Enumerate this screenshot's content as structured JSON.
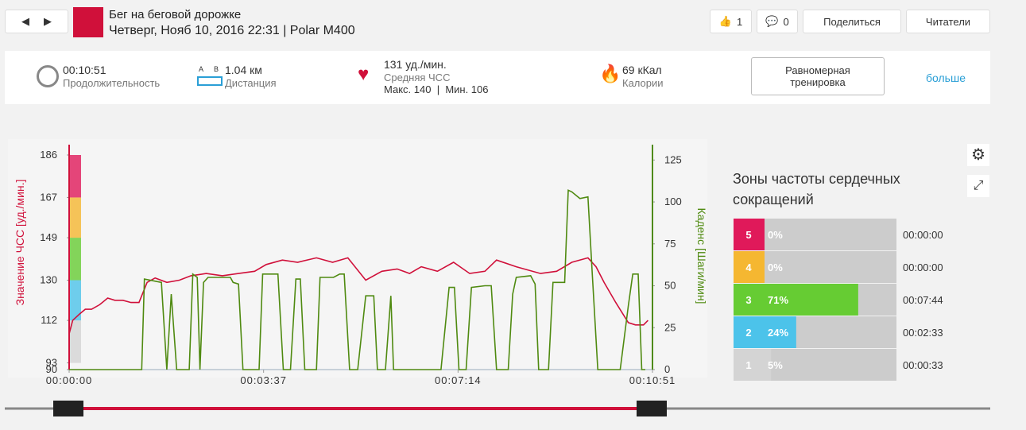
{
  "header": {
    "title": "Бег на беговой дорожке",
    "subtitle": "Четверг, Нояб 10, 2016 22:31 | Polar M400",
    "likes": "1",
    "comments": "0",
    "share": "Поделиться",
    "readers": "Читатели"
  },
  "summary": {
    "duration": "00:10:51",
    "duration_label": "Продолжительность",
    "dist_a": "A",
    "dist_b": "B",
    "distance": "1.04 км",
    "distance_label": "Дистанция",
    "hr": "131 уд./мин.",
    "hr_label": "Средняя ЧСС",
    "hr_max": "Макс. 140",
    "hr_sep": "|",
    "hr_min": "Мин. 106",
    "calories": "69 кКал",
    "calories_label": "Калории",
    "training": "Равномерная тренировка",
    "more": "больше"
  },
  "chart_data": {
    "type": "line",
    "y_label": "Значение ЧСС [уд./мин.]",
    "y2_label": "Каденс [Шаги/мин]",
    "xlim": [
      0,
      651
    ],
    "xticks": [
      {
        "value": 0,
        "label": "00:00:00"
      },
      {
        "value": 217,
        "label": "00:03:37"
      },
      {
        "value": 434,
        "label": "00:07:14"
      },
      {
        "value": 651,
        "label": "00:10:51"
      }
    ],
    "ylim": [
      90,
      186
    ],
    "yticks": [
      90,
      93,
      112,
      130,
      149,
      167,
      186
    ],
    "y2lim": [
      0,
      128
    ],
    "y2ticks": [
      0,
      25,
      50,
      75,
      100,
      125
    ],
    "series": [
      {
        "color": "#d0103a",
        "x": [
          0,
          4,
          12,
          18,
          25,
          34,
          43,
          51,
          60,
          69,
          78,
          87,
          96,
          109,
          123,
          136,
          153,
          171,
          189,
          207,
          220,
          238,
          255,
          276,
          294,
          311,
          331,
          349,
          366,
          380,
          393,
          411,
          429,
          447,
          464,
          477,
          499,
          526,
          544,
          561,
          579,
          588,
          597,
          610,
          624,
          632,
          641,
          646
        ],
        "values": [
          106,
          112,
          115,
          117,
          117,
          119,
          122,
          121,
          121,
          120,
          120,
          129,
          131,
          129,
          130,
          132,
          133,
          132,
          133,
          134,
          137,
          139,
          138,
          140,
          138,
          140,
          130,
          134,
          135,
          133,
          136,
          134,
          138,
          133,
          134,
          139,
          136,
          133,
          134,
          138,
          140,
          136,
          129,
          120,
          111,
          110,
          110,
          112
        ]
      },
      {
        "color": "#4f8a10",
        "axis": "y2",
        "x": [
          0,
          81,
          84,
          103,
          109,
          114,
          120,
          134,
          138,
          143,
          146,
          150,
          155,
          180,
          183,
          189,
          194,
          212,
          216,
          233,
          239,
          247,
          253,
          258,
          263,
          276,
          280,
          295,
          302,
          307,
          313,
          322,
          331,
          340,
          344,
          353,
          359,
          362,
          415,
          424,
          430,
          435,
          443,
          449,
          464,
          471,
          477,
          490,
          495,
          499,
          515,
          520,
          524,
          535,
          540,
          547,
          553,
          557,
          561,
          570,
          579,
          584,
          590,
          615,
          624,
          629,
          635,
          639,
          643
        ],
        "values": [
          0,
          0,
          54,
          52,
          0,
          45,
          0,
          0,
          57,
          55,
          0,
          52,
          55,
          55,
          52,
          51,
          0,
          0,
          57,
          57,
          0,
          0,
          54,
          54,
          0,
          0,
          55,
          55,
          57,
          57,
          0,
          0,
          44,
          44,
          0,
          0,
          44,
          0,
          0,
          49,
          49,
          0,
          0,
          49,
          50,
          50,
          0,
          0,
          45,
          55,
          56,
          51,
          0,
          0,
          52,
          52,
          52,
          107,
          106,
          102,
          103,
          55,
          0,
          0,
          38,
          57,
          57,
          0,
          0
        ]
      }
    ]
  },
  "zones": {
    "title": "Зоны частоты сердечных сокращений",
    "labels": [
      "5",
      "4",
      "3",
      "2",
      "1"
    ],
    "values": [
      0,
      0,
      71,
      24,
      5
    ],
    "value_labels": [
      "0%",
      "0%",
      "71%",
      "24%",
      "5%"
    ],
    "times": [
      "00:00:00",
      "00:00:00",
      "00:07:44",
      "00:02:33",
      "00:00:33"
    ],
    "colors": [
      "#e0195a",
      "#f5b731",
      "#66cc33",
      "#4cc3ea",
      "#d4d4d4"
    ],
    "xlim": [
      0,
      100
    ]
  }
}
